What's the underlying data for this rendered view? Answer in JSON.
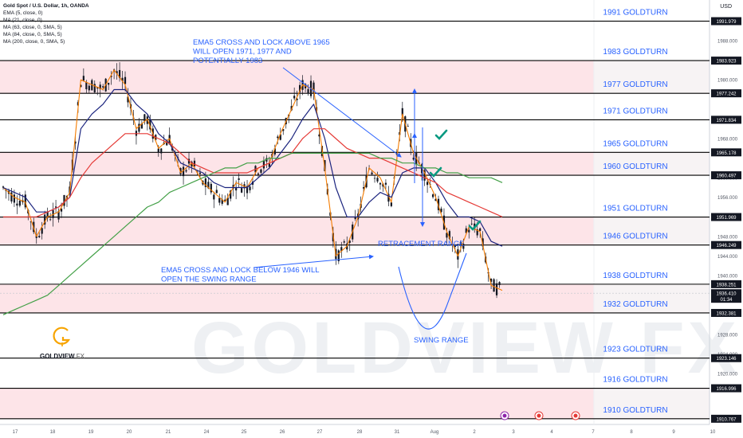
{
  "legend": {
    "title": "Gold Spot / U.S. Dollar, 1h, OANDA",
    "lines": [
      "EMA (5, close, 0)",
      "MA (21, close, 0)",
      "MA (63, close, 0, SMA, 5)",
      "MA (84, close, 0, SMA, 5)",
      "MA (200, close, 0, SMA, 5)"
    ]
  },
  "currency_label": "USD",
  "watermark": "GOLDVIEW FX",
  "logo": {
    "letter": "G",
    "name": "GOLDVIEW",
    "suffix": "FX"
  },
  "colors": {
    "resistance_band": "#fde4e8",
    "level_line": "#000000",
    "label_text": "#2962ff",
    "ema5": "#f57c00",
    "ma21": "#1a237e",
    "ma63": "#e53935",
    "ma200": "#43a047",
    "annotation": "#2962ff",
    "check": "#089981",
    "candle": "#131722"
  },
  "chart_data": {
    "type": "line",
    "title": "Gold Spot / U.S. Dollar, 1h, OANDA",
    "xlabel": "",
    "ylabel": "",
    "ylim": [
      1909.6,
      1996.3
    ],
    "x_tick_labels": [
      "17",
      "18",
      "19",
      "20",
      "21",
      "24",
      "25",
      "26",
      "27",
      "28",
      "31",
      "Aug",
      "2",
      "3",
      "4",
      "7",
      "8",
      "9",
      "10"
    ],
    "y_ticks": [
      1920,
      1924,
      1928,
      1940,
      1944,
      1948,
      1956,
      1960,
      1968,
      1980,
      1988
    ],
    "levels": [
      {
        "label": "1991 GOLDTURN",
        "value": 1991.979,
        "tag": "1991.979"
      },
      {
        "label": "1983 GOLDTURN",
        "value": 1983.923,
        "tag": "1983.923"
      },
      {
        "label": "1977 GOLDTURN",
        "value": 1977.242,
        "tag": "1977.242"
      },
      {
        "label": "1971 GOLDTURN",
        "value": 1971.834,
        "tag": "1971.834"
      },
      {
        "label": "1965 GOLDTURN",
        "value": 1965.178,
        "tag": "1965.178"
      },
      {
        "label": "1960 GOLDTURN",
        "value": 1960.497,
        "tag": "1960.497"
      },
      {
        "label": "1951 GOLDTURN",
        "value": 1951.969,
        "tag": "1951.969"
      },
      {
        "label": "1946 GOLDTURN",
        "value": 1946.249,
        "tag": "1946.249"
      },
      {
        "label": "1938 GOLDTURN",
        "value": 1938.251,
        "tag": "1938.251"
      },
      {
        "label": "1932 GOLDTURN",
        "value": 1932.381,
        "tag": "1932.381"
      },
      {
        "label": "1923 GOLDTURN",
        "value": 1923.146,
        "tag": "1923.146"
      },
      {
        "label": "1916 GOLDTURN",
        "value": 1916.996,
        "tag": "1916.996"
      },
      {
        "label": "1910 GOLDTURN",
        "value": 1910.767,
        "tag": "1910.767"
      }
    ],
    "bands": [
      [
        1977.242,
        1983.923
      ],
      [
        1960.497,
        1965.178
      ],
      [
        1946.249,
        1951.969
      ],
      [
        1932.381,
        1938.251
      ],
      [
        1910.767,
        1916.996
      ]
    ],
    "current_price": {
      "value": 1936.41,
      "label": "1936.410",
      "countdown": "01:34"
    },
    "series": [
      {
        "name": "EMA (5, close, 0)",
        "values": [
          1958,
          1956,
          1955,
          1948,
          1952,
          1953,
          1957,
          1980,
          1979,
          1978,
          1982,
          1979,
          1970,
          1972,
          1966,
          1968,
          1961,
          1963,
          1959,
          1957,
          1955,
          1959,
          1958,
          1962,
          1963,
          1969,
          1974,
          1979,
          1978,
          1962,
          1944,
          1946,
          1952,
          1962,
          1960,
          1955,
          1973,
          1965,
          1961,
          1956,
          1949,
          1944,
          1950,
          1949,
          1938,
          1937
        ]
      },
      {
        "name": "MA (21, close, 0)",
        "values": [
          1958,
          1957,
          1956,
          1953,
          1953,
          1954,
          1956,
          1970,
          1973,
          1975,
          1978,
          1978,
          1975,
          1973,
          1969,
          1967,
          1963,
          1962,
          1961,
          1959,
          1958,
          1958,
          1958,
          1960,
          1962,
          1965,
          1968,
          1972,
          1975,
          1968,
          1958,
          1952,
          1952,
          1955,
          1957,
          1956,
          1961,
          1962,
          1962,
          1959,
          1955,
          1952,
          1952,
          1951,
          1947,
          1946
        ]
      },
      {
        "name": "MA (63, close, 0, SMA, 5)",
        "values": [
          1952,
          1952,
          1952,
          1952,
          1953,
          1954,
          1956,
          1960,
          1963,
          1965,
          1967,
          1969,
          1969,
          1969,
          1968,
          1967,
          1965,
          1963,
          1962,
          1961,
          1961,
          1961,
          1961,
          1962,
          1963,
          1964,
          1965,
          1968,
          1970,
          1970,
          1968,
          1966,
          1965,
          1964,
          1964,
          1963,
          1962,
          1961,
          1960,
          1959,
          1957,
          1956,
          1955,
          1954,
          1953,
          1952
        ]
      },
      {
        "name": "MA (200, close, 0, SMA, 5)",
        "values": [
          1932,
          1933,
          1934,
          1935,
          1936,
          1938,
          1940,
          1942,
          1944,
          1946,
          1948,
          1950,
          1952,
          1954,
          1955,
          1957,
          1958,
          1959,
          1960,
          1961,
          1962,
          1962,
          1963,
          1963,
          1964,
          1964,
          1965,
          1965,
          1965,
          1965,
          1965,
          1965,
          1965,
          1965,
          1964,
          1964,
          1963,
          1963,
          1962,
          1962,
          1961,
          1961,
          1960,
          1960,
          1960,
          1959
        ]
      }
    ]
  },
  "annotations": {
    "cross_above": "EMA5 CROSS AND LOCK ABOVE 1965\nWILL OPEN 1971, 1977 AND\nPOTENTIALLY 1983",
    "cross_below": "EMA5 CROSS AND LOCK BELOW 1946 WILL\nOPEN THE SWING RANGE",
    "retracement": "RETRACEMENT RANGE",
    "swing": "SWING RANGE"
  }
}
